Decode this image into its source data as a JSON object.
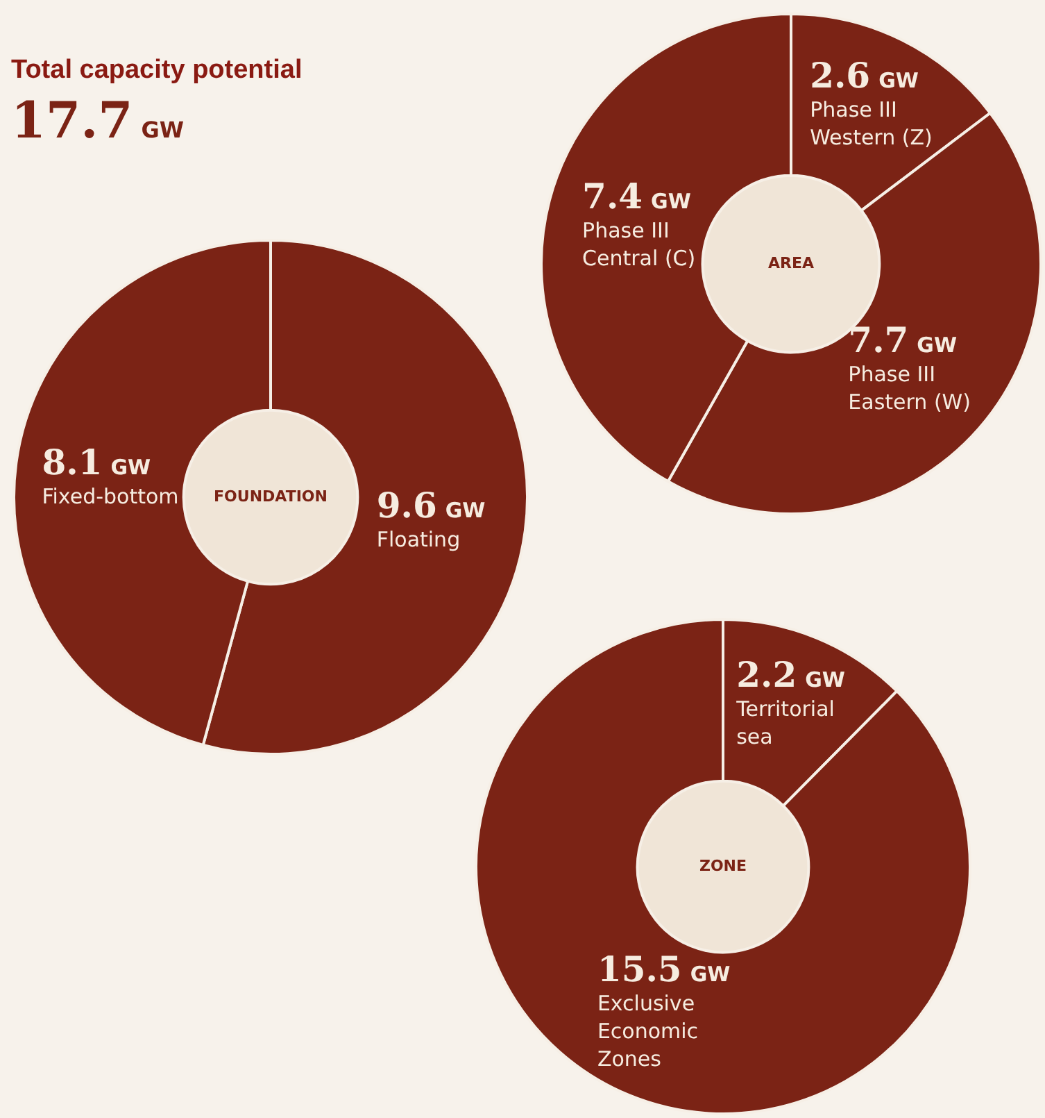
{
  "chart_data": [
    {
      "type": "other",
      "title": "Total capacity potential",
      "annotations": [
        "17.7 GW"
      ]
    },
    {
      "type": "donut",
      "title": "FOUNDATION",
      "categories": [
        "Floating",
        "Fixed-bottom"
      ],
      "values": [
        9.6,
        8.1
      ],
      "value_labels": [
        "9.6 GW",
        "8.1 GW"
      ],
      "colors": [
        "#7b2315",
        "#7b2315"
      ]
    },
    {
      "type": "donut",
      "title": "AREA",
      "categories": [
        "Phase III Western (Z)",
        "Phase III Eastern (W)",
        "Phase III Central (C)"
      ],
      "values": [
        2.6,
        7.7,
        7.4
      ],
      "value_labels": [
        "2.6 GW",
        "7.7 GW",
        "7.4 GW"
      ],
      "colors": [
        "#7b2315",
        "#7b2315",
        "#7b2315"
      ]
    },
    {
      "type": "donut",
      "title": "ZONE",
      "categories": [
        "Territorial sea",
        "Exclusive Economic Zones"
      ],
      "values": [
        2.2,
        15.5
      ],
      "value_labels": [
        "2.2 GW",
        "15.5 GW"
      ],
      "colors": [
        "#7b2315",
        "#7b2315"
      ]
    }
  ]
}
